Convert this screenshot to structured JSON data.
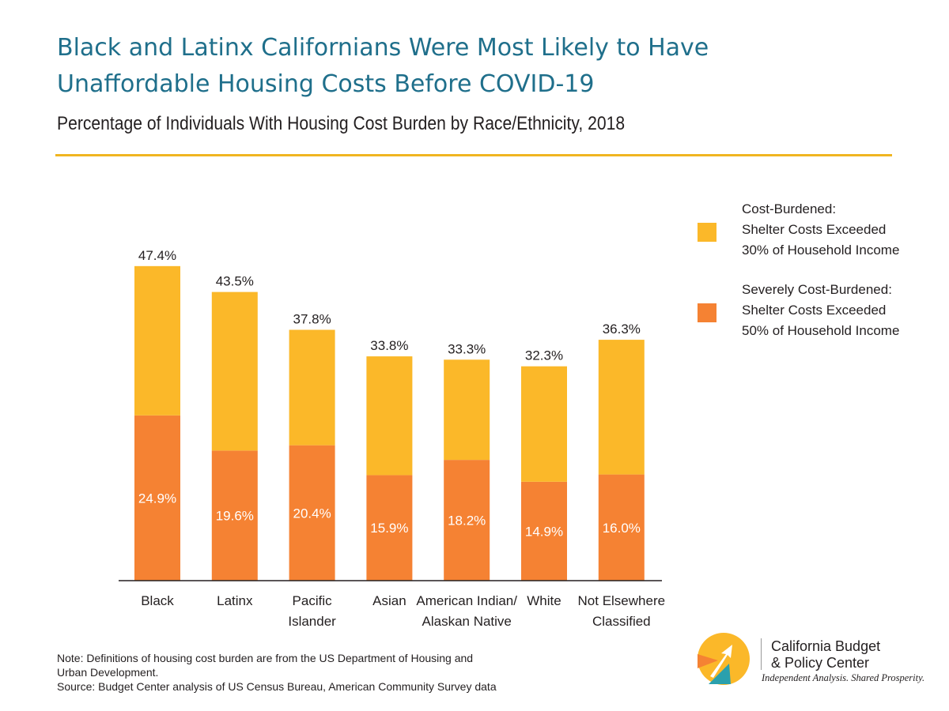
{
  "header": {
    "title_line1": "Black and Latinx Californians Were Most Likely to Have",
    "title_line2": "Unaffordable Housing Costs Before COVID-19",
    "subtitle": "Percentage of Individuals With Housing Cost Burden by Race/Ethnicity, 2018"
  },
  "colors": {
    "title": "#1f6f8b",
    "rule": "#f0b521",
    "cost_burdened": "#fbb829",
    "severely_cost_burdened": "#f58233",
    "axis": "#231f20"
  },
  "chart_data": {
    "type": "bar",
    "stacked": true,
    "ylim": [
      0,
      50
    ],
    "grid": false,
    "legend_position": "right",
    "categories": [
      [
        "Black"
      ],
      [
        "Latinx"
      ],
      [
        "Pacific",
        "Islander"
      ],
      [
        "Asian"
      ],
      [
        "American Indian/",
        "Alaskan Native"
      ],
      [
        "White"
      ],
      [
        "Not Elsewhere",
        "Classified"
      ]
    ],
    "series": [
      {
        "name": [
          "Severely Cost-Burdened:",
          "Shelter Costs Exceeded",
          "50% of Household Income"
        ],
        "color": "#f58233",
        "values": [
          24.9,
          19.6,
          20.4,
          15.9,
          18.2,
          14.9,
          16.0
        ],
        "labels": [
          "24.9%",
          "19.6%",
          "20.4%",
          "15.9%",
          "18.2%",
          "14.9%",
          "16.0%"
        ]
      },
      {
        "name": [
          "Cost-Burdened:",
          "Shelter Costs Exceeded",
          "30% of Household Income"
        ],
        "color": "#fbb829",
        "totals": [
          47.4,
          43.5,
          37.8,
          33.8,
          33.3,
          32.3,
          36.3
        ],
        "total_labels": [
          "47.4%",
          "43.5%",
          "37.8%",
          "33.8%",
          "33.3%",
          "32.3%",
          "36.3%"
        ]
      }
    ]
  },
  "footer": {
    "note_line1": "Note: Definitions of housing cost burden are from the US Department of Housing and",
    "note_line2": "Urban Development.",
    "source": "Source: Budget Center analysis of US Census Bureau, American Community Survey data"
  },
  "logo": {
    "name_line1": "California Budget",
    "name_line2": "& Policy Center",
    "tagline": "Independent Analysis. Shared Prosperity.",
    "colors": [
      "#fbb829",
      "#f58233",
      "#2aa0ad"
    ]
  }
}
